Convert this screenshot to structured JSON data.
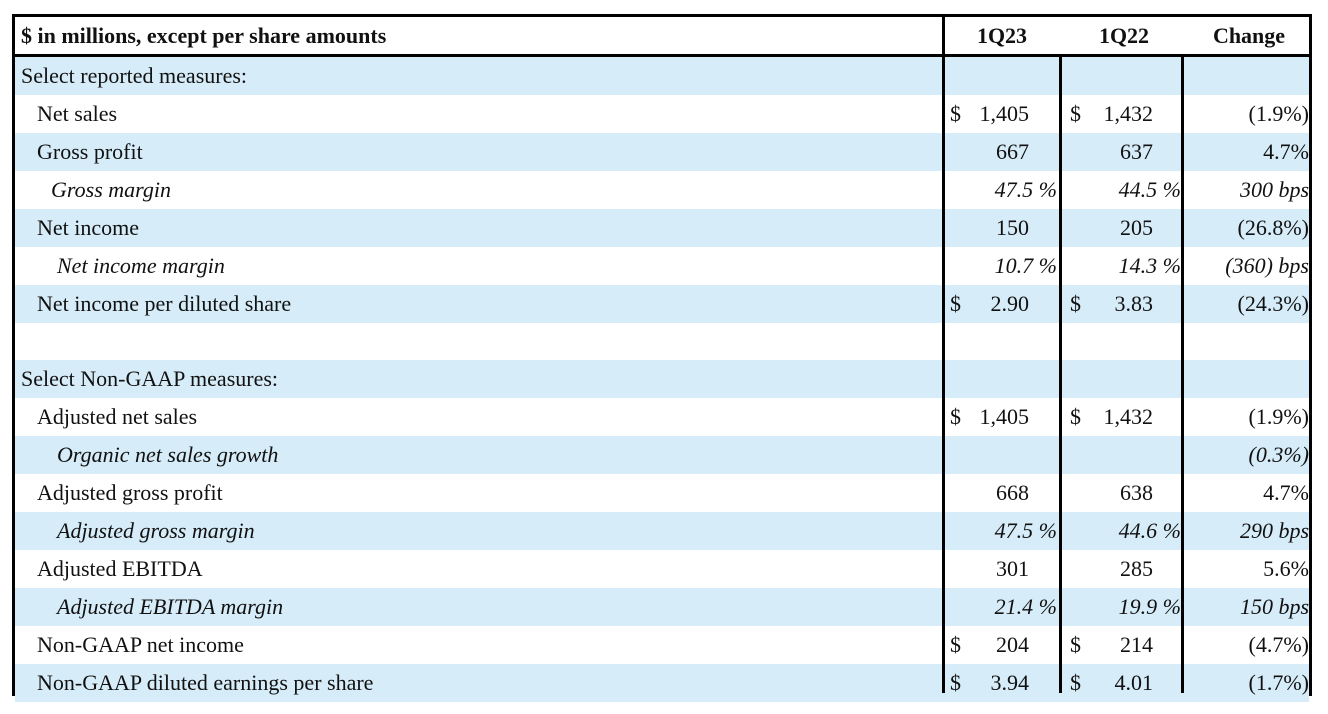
{
  "header": {
    "label": "$ in millions, except per share amounts",
    "col1": "1Q23",
    "col2": "1Q22",
    "col3": "Change"
  },
  "sections": {
    "reported_title": "Select reported measures:",
    "nongaap_title": "Select Non-GAAP measures:"
  },
  "rows": [
    {
      "label": "Net sales",
      "c1_cur": "$",
      "c1": "1,405",
      "c2_cur": "$",
      "c2": "1,432",
      "change": "(1.9%)"
    },
    {
      "label": "Gross profit",
      "c1_cur": "",
      "c1": "667",
      "c2_cur": "",
      "c2": "637",
      "change": "4.7%"
    },
    {
      "label": "Gross margin",
      "c1_cur": "",
      "c1": "47.5 %",
      "c2_cur": "",
      "c2": "44.5 %",
      "change": "300 bps"
    },
    {
      "label": "Net income",
      "c1_cur": "",
      "c1": "150",
      "c2_cur": "",
      "c2": "205",
      "change": "(26.8%)"
    },
    {
      "label": "Net income margin",
      "c1_cur": "",
      "c1": "10.7 %",
      "c2_cur": "",
      "c2": "14.3 %",
      "change": "(360) bps"
    },
    {
      "label": "Net income per diluted share",
      "c1_cur": "$",
      "c1": "2.90",
      "c2_cur": "$",
      "c2": "3.83",
      "change": "(24.3%)"
    },
    {
      "label": "Adjusted net sales",
      "c1_cur": "$",
      "c1": "1,405",
      "c2_cur": "$",
      "c2": "1,432",
      "change": "(1.9%)"
    },
    {
      "label": "Organic net sales growth",
      "c1_cur": "",
      "c1": "",
      "c2_cur": "",
      "c2": "",
      "change": "(0.3%)"
    },
    {
      "label": "Adjusted gross profit",
      "c1_cur": "",
      "c1": "668",
      "c2_cur": "",
      "c2": "638",
      "change": "4.7%"
    },
    {
      "label": "Adjusted gross margin",
      "c1_cur": "",
      "c1": "47.5 %",
      "c2_cur": "",
      "c2": "44.6 %",
      "change": "290 bps"
    },
    {
      "label": "Adjusted EBITDA",
      "c1_cur": "",
      "c1": "301",
      "c2_cur": "",
      "c2": "285",
      "change": "5.6%"
    },
    {
      "label": "Adjusted EBITDA margin",
      "c1_cur": "",
      "c1": "21.4 %",
      "c2_cur": "",
      "c2": "19.9 %",
      "change": "150 bps"
    },
    {
      "label": "Non-GAAP net income",
      "c1_cur": "$",
      "c1": "204",
      "c2_cur": "$",
      "c2": "214",
      "change": "(4.7%)"
    },
    {
      "label": "Non-GAAP diluted earnings per share",
      "c1_cur": "$",
      "c1": "3.94",
      "c2_cur": "$",
      "c2": "4.01",
      "change": "(1.7%)"
    }
  ]
}
